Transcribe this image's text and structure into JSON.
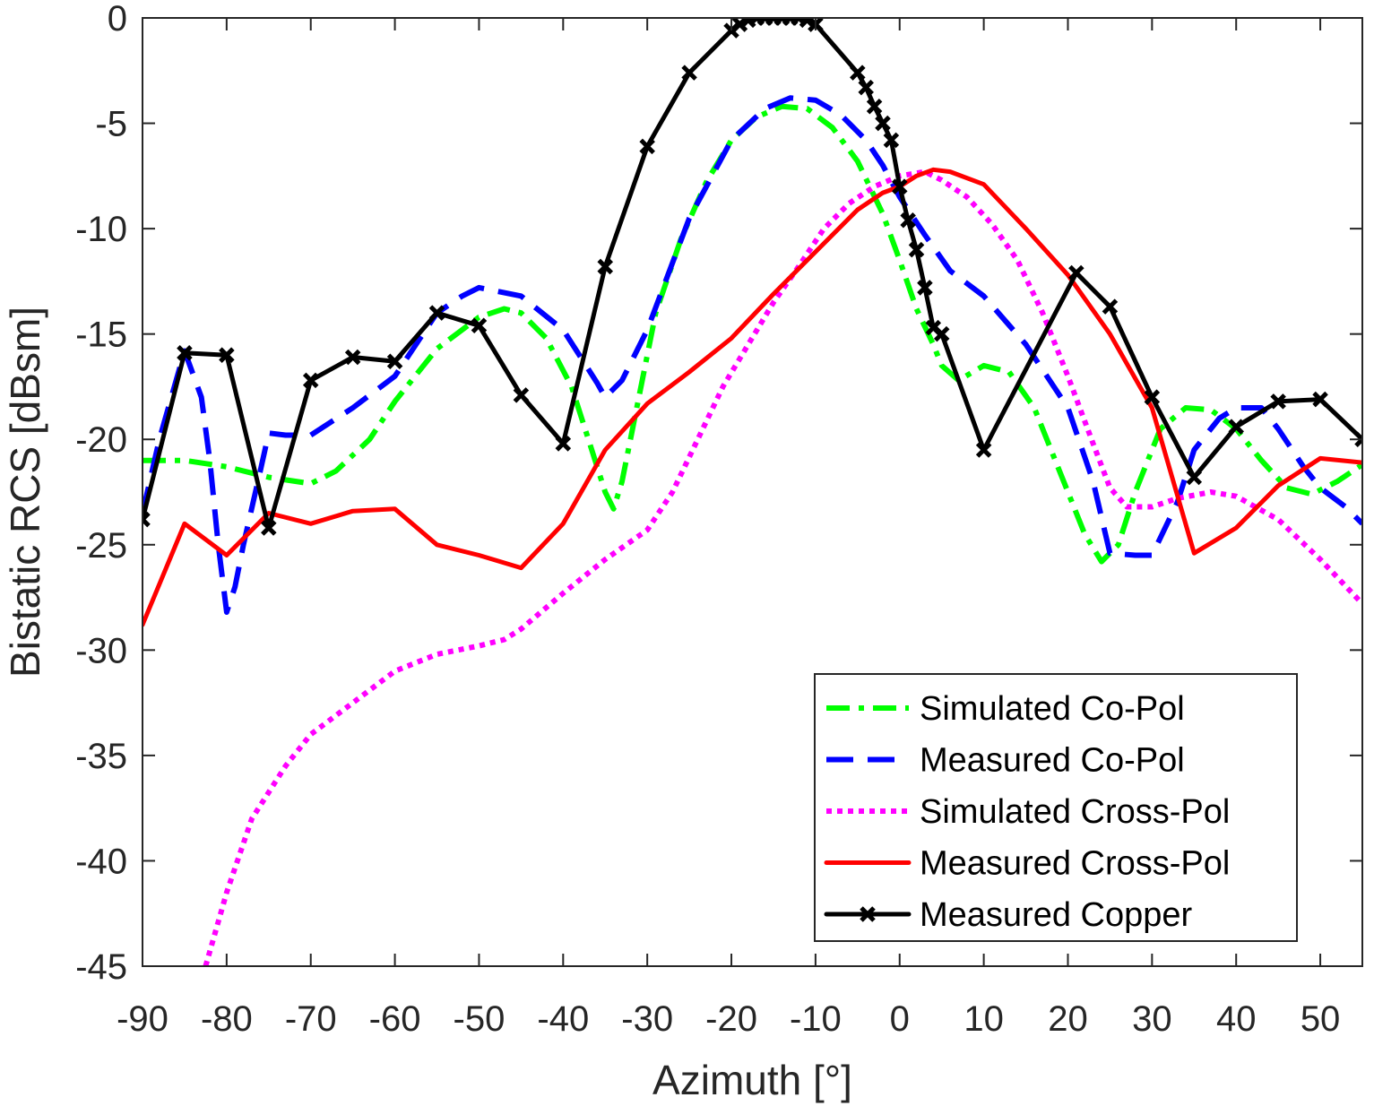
{
  "chart_data": {
    "type": "line",
    "title": "",
    "xlabel": "Azimuth [°]",
    "ylabel": "Bistatic RCS [dBsm]",
    "xlim": [
      -90,
      55
    ],
    "ylim": [
      -45,
      0
    ],
    "xticks": [
      -90,
      -80,
      -70,
      -60,
      -50,
      -40,
      -30,
      -20,
      -10,
      0,
      10,
      20,
      30,
      40,
      50
    ],
    "yticks": [
      0,
      -5,
      -10,
      -15,
      -20,
      -25,
      -30,
      -35,
      -40,
      -45
    ],
    "xtick_labels": [
      "-90",
      "-80",
      "-70",
      "-60",
      "-50",
      "-40",
      "-30",
      "-20",
      "-10",
      "0",
      "10",
      "20",
      "30",
      "40",
      "50"
    ],
    "ytick_labels": [
      "0",
      "-5",
      "-10",
      "-15",
      "-20",
      "-25",
      "-30",
      "-35",
      "-40",
      "-45"
    ],
    "grid": false,
    "legend_position": "bottom-right",
    "series": [
      {
        "name": "Simulated Co-Pol",
        "color": "#00ff00",
        "style": "dash-dot",
        "x": [
          -90,
          -85,
          -80,
          -75,
          -70,
          -67,
          -63,
          -60,
          -55,
          -50,
          -47,
          -45,
          -42,
          -39,
          -37,
          -35,
          -34,
          -33,
          -31,
          -29,
          -26,
          -23,
          -20,
          -17,
          -14,
          -11,
          -8,
          -5,
          -2,
          0,
          2,
          4,
          5,
          7,
          10,
          13,
          16,
          19,
          22,
          24,
          26,
          28,
          31,
          34,
          37,
          40,
          43,
          46,
          49,
          52,
          55
        ],
        "y": [
          -21,
          -21,
          -21.3,
          -21.8,
          -22.1,
          -21.5,
          -20,
          -18.2,
          -15.7,
          -14.2,
          -13.8,
          -14,
          -15.2,
          -17.5,
          -20,
          -22.5,
          -23.3,
          -22,
          -18,
          -14,
          -10.5,
          -7.8,
          -5.8,
          -4.7,
          -4.2,
          -4.3,
          -5.2,
          -6.8,
          -9.3,
          -11.5,
          -13.8,
          -15.5,
          -16.5,
          -17.2,
          -16.5,
          -16.8,
          -18.5,
          -21.5,
          -24.5,
          -25.8,
          -25,
          -22.5,
          -19.5,
          -18.5,
          -18.6,
          -19.5,
          -21,
          -22.3,
          -22.6,
          -22,
          -21.2
        ]
      },
      {
        "name": "Measured Co-Pol",
        "color": "#0000ff",
        "style": "dashed",
        "x": [
          -90,
          -88,
          -85,
          -83,
          -82,
          -81,
          -80,
          -79,
          -78,
          -76,
          -75,
          -73,
          -70,
          -65,
          -60,
          -57,
          -55,
          -52,
          -50,
          -45,
          -40,
          -36,
          -35,
          -33,
          -30,
          -25,
          -20,
          -16,
          -13,
          -10,
          -7,
          -4,
          -2,
          0,
          3,
          6,
          10,
          15,
          20,
          23,
          25,
          28,
          30,
          33,
          35,
          38,
          40,
          43,
          45,
          48,
          50,
          53,
          55
        ],
        "y": [
          -23.5,
          -20,
          -15.8,
          -18,
          -21,
          -25,
          -28.2,
          -27,
          -25,
          -21.5,
          -19.7,
          -19.8,
          -19.8,
          -18.5,
          -17,
          -15.2,
          -14,
          -13.2,
          -12.8,
          -13.2,
          -14.8,
          -17.3,
          -18,
          -17.2,
          -14.8,
          -9.5,
          -5.8,
          -4.3,
          -3.8,
          -3.9,
          -4.6,
          -5.8,
          -7,
          -8.5,
          -10.3,
          -12,
          -13.2,
          -15.5,
          -18.5,
          -22,
          -25.4,
          -25.5,
          -25.5,
          -23,
          -20.5,
          -19,
          -18.5,
          -18.5,
          -19.5,
          -21.3,
          -22.3,
          -23.2,
          -24
        ]
      },
      {
        "name": "Simulated Cross-Pol",
        "color": "#ff00ff",
        "style": "dotted",
        "x": [
          -82.5,
          -80,
          -77,
          -73,
          -70,
          -65,
          -60,
          -55,
          -50,
          -47,
          -45,
          -40,
          -35,
          -30,
          -27,
          -24,
          -21,
          -18,
          -15,
          -12,
          -9,
          -6,
          -3,
          0,
          3,
          5,
          8,
          11,
          14,
          17,
          20,
          23,
          25,
          27,
          30,
          33,
          37,
          40,
          45,
          50,
          55
        ],
        "y": [
          -45,
          -41.5,
          -38,
          -35.5,
          -34,
          -32.5,
          -31,
          -30.2,
          -29.8,
          -29.5,
          -29,
          -27.3,
          -25.7,
          -24.3,
          -22.5,
          -20,
          -17.5,
          -15.5,
          -13.5,
          -11.8,
          -10,
          -8.8,
          -8,
          -7.5,
          -7.3,
          -7.7,
          -8.5,
          -9.8,
          -11.5,
          -14,
          -17,
          -20.2,
          -22.3,
          -23.2,
          -23.2,
          -22.8,
          -22.5,
          -22.7,
          -23.8,
          -25.7,
          -27.8
        ]
      },
      {
        "name": "Measured Cross-Pol",
        "color": "#ff0000",
        "style": "solid",
        "x": [
          -90,
          -85,
          -80,
          -75,
          -70,
          -65,
          -60,
          -55,
          -50,
          -45,
          -40,
          -35,
          -30,
          -25,
          -20,
          -15,
          -10,
          -5,
          -2,
          0,
          2,
          4,
          6,
          10,
          15,
          20,
          25,
          30,
          35,
          40,
          45,
          50,
          55
        ],
        "y": [
          -28.8,
          -24,
          -25.5,
          -23.5,
          -24,
          -23.4,
          -23.3,
          -25,
          -25.5,
          -26.1,
          -24,
          -20.5,
          -18.3,
          -16.8,
          -15.2,
          -13.1,
          -11.1,
          -9.1,
          -8.3,
          -8,
          -7.5,
          -7.2,
          -7.3,
          -7.9,
          -10,
          -12.2,
          -15,
          -18.5,
          -25.4,
          -24.2,
          -22.2,
          -20.9,
          -21.1
        ]
      },
      {
        "name": "Measured Copper",
        "color": "#000000",
        "style": "solid-x-marker",
        "x": [
          -90,
          -85,
          -80,
          -75,
          -70,
          -65,
          -60,
          -55,
          -50,
          -45,
          -40,
          -35,
          -30,
          -25,
          -20,
          -19,
          -18,
          -17,
          -16,
          -15,
          -14,
          -13,
          -12,
          -11,
          -10,
          -5,
          -4,
          -3,
          -2,
          -1,
          0,
          1,
          2,
          3,
          4,
          5,
          10,
          21,
          25,
          30,
          35,
          40,
          45,
          50,
          55
        ],
        "y": [
          -23.8,
          -15.9,
          -16,
          -24.2,
          -17.2,
          -16.1,
          -16.3,
          -14,
          -14.6,
          -17.9,
          -20.2,
          -11.8,
          -6.1,
          -2.6,
          -0.6,
          -0.3,
          -0.1,
          0,
          0,
          0,
          0,
          0,
          0,
          -0.1,
          -0.3,
          -2.6,
          -3.3,
          -4.2,
          -5,
          -5.8,
          -8,
          -9.6,
          -11,
          -12.8,
          -14.7,
          -15,
          -20.5,
          -12.1,
          -13.7,
          -18,
          -21.8,
          -19.4,
          -18.2,
          -18.1,
          -20
        ]
      }
    ]
  }
}
